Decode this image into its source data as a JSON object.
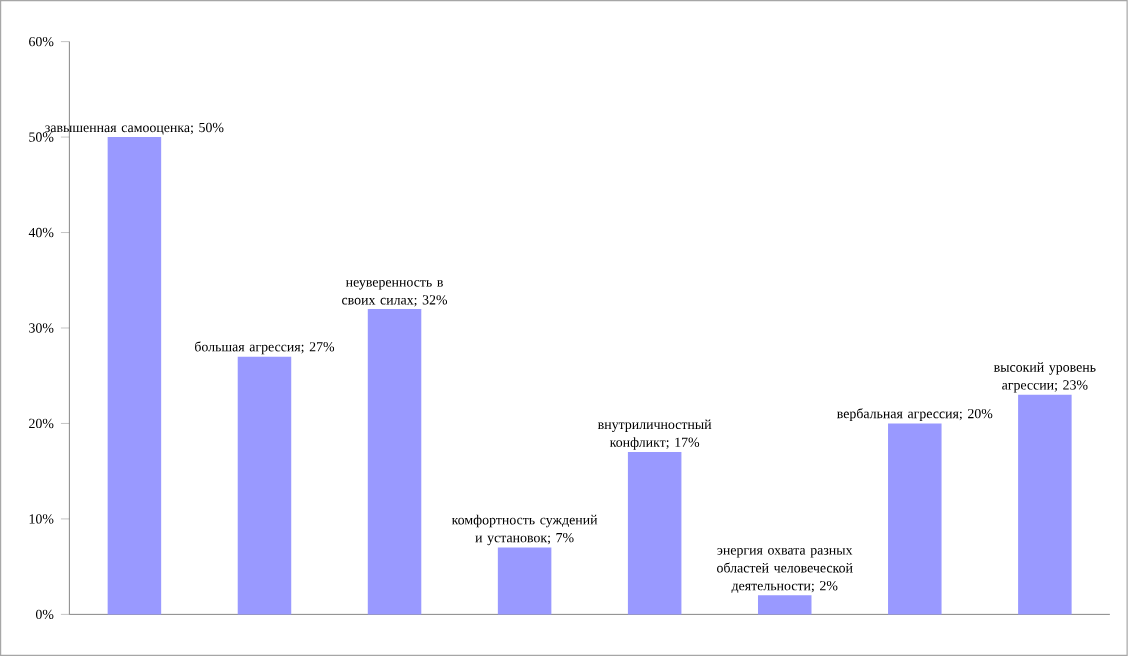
{
  "chart_data": {
    "type": "bar",
    "categories": [
      null,
      null,
      null,
      null,
      null,
      null,
      null,
      null
    ],
    "values": [
      50,
      27,
      32,
      7,
      17,
      2,
      20,
      23
    ],
    "value_labels": [
      "завышенная самооценка; 50%",
      "большая агрессия; 27%",
      "неуверенность в своих силах; 32%",
      "комфортность суждений и установок; 7%",
      "внутриличностный конфликт; 17%",
      "энергия охвата разных областей человеческой деятельности; 2%",
      "вербальная агрессия; 20%",
      "высокий уровень агрессии; 23%"
    ],
    "color": "#9999ff",
    "ylim": [
      0,
      60
    ],
    "yticks": [
      {
        "value": 0,
        "label": "0%"
      },
      {
        "value": 10,
        "label": "10%"
      },
      {
        "value": 20,
        "label": "20%"
      },
      {
        "value": 30,
        "label": "30%"
      },
      {
        "value": 40,
        "label": "40%"
      },
      {
        "value": 50,
        "label": "50%"
      },
      {
        "value": 60,
        "label": "60%"
      }
    ]
  }
}
